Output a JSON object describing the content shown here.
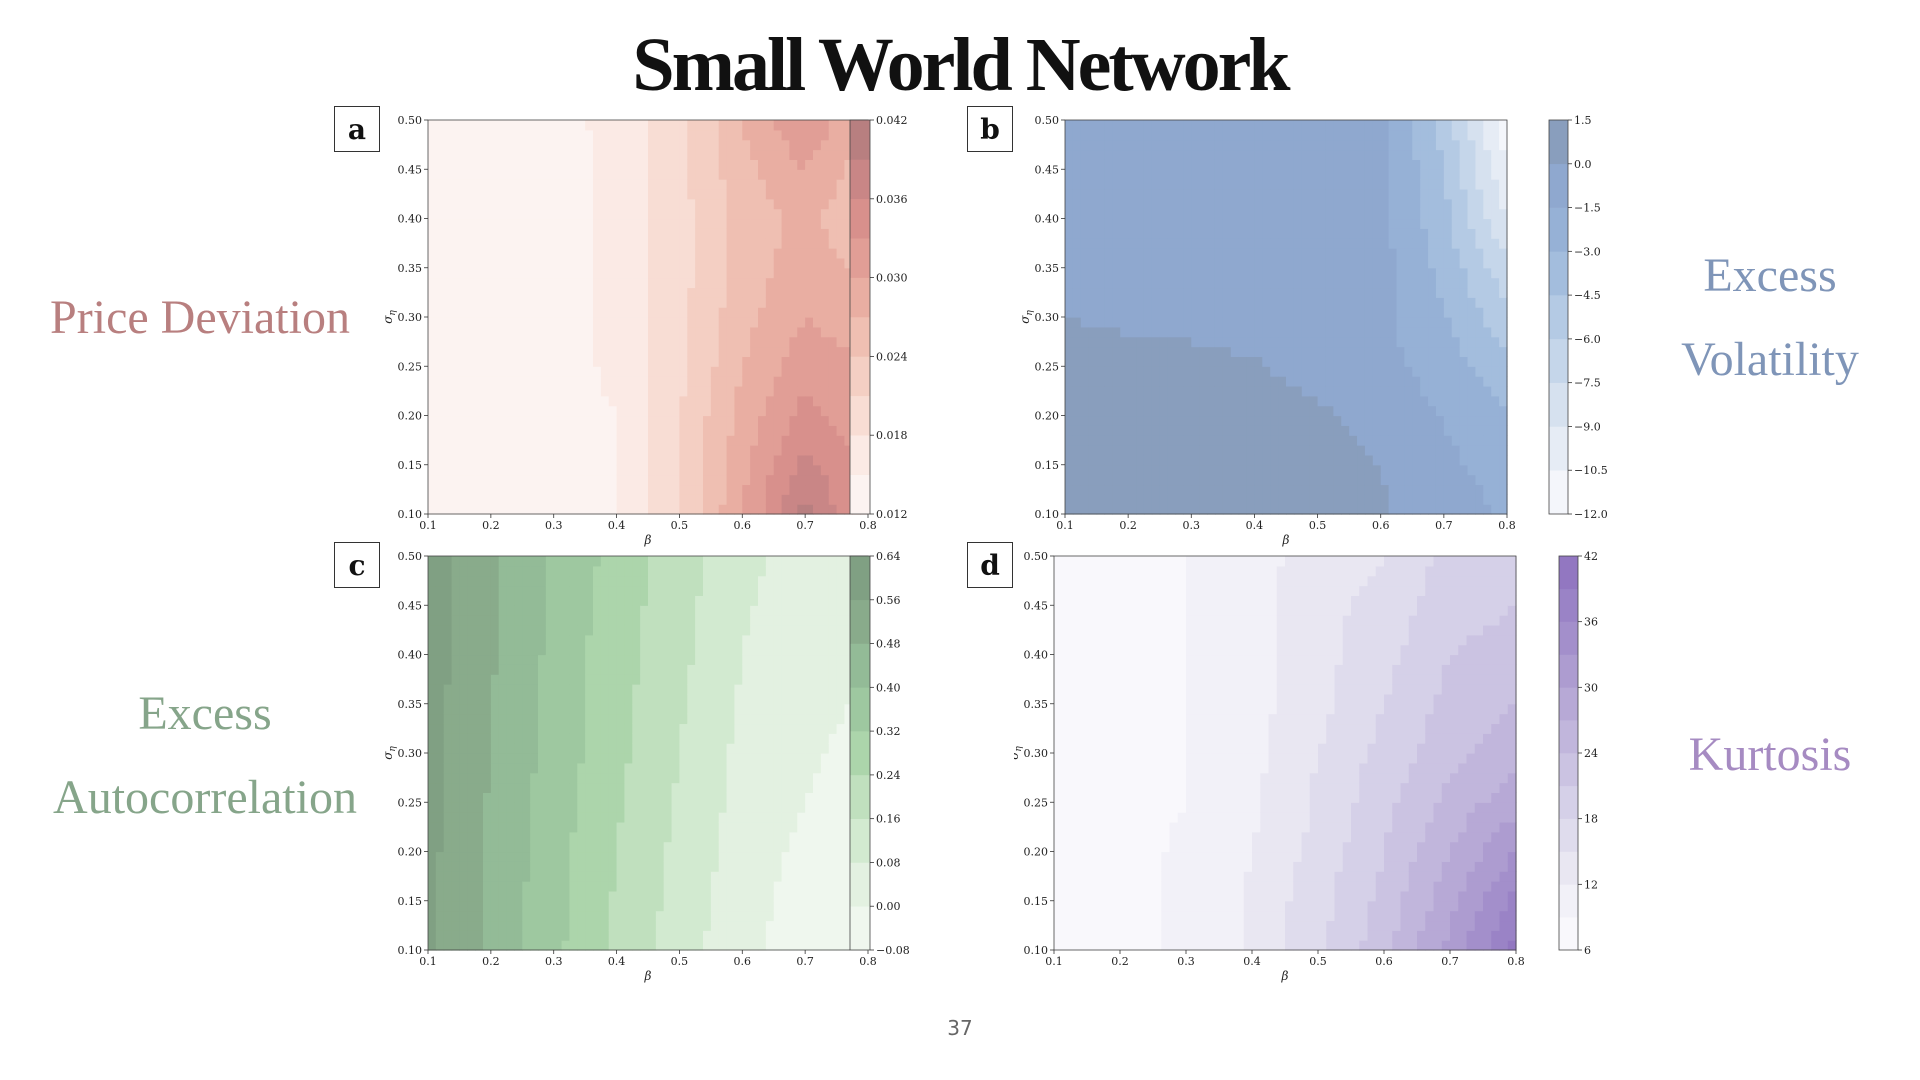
{
  "slide": {
    "title": "Small World Network",
    "page_number": "37",
    "labels": {
      "a": {
        "lines": [
          "Price Deviation"
        ],
        "color": "#b87f7f"
      },
      "b": {
        "lines": [
          "Excess",
          "Volatility"
        ],
        "color": "#7f95b8"
      },
      "c": {
        "lines": [
          "Excess",
          "Autocorrelation"
        ],
        "color": "#86a58a"
      },
      "d": {
        "lines": [
          "Kurtosis"
        ],
        "color": "#a68bc2"
      }
    },
    "panel_letters": {
      "a": "a",
      "b": "b",
      "c": "c",
      "d": "d"
    }
  },
  "chart_data": [
    {
      "id": "a",
      "type": "heatmap",
      "xlabel": "β",
      "ylabel": "σ_η",
      "xlim": [
        0.1,
        0.8
      ],
      "ylim": [
        0.1,
        0.5
      ],
      "x_ticks": [
        "0.1",
        "0.2",
        "0.3",
        "0.4",
        "0.5",
        "0.6",
        "0.7",
        "0.8"
      ],
      "y_ticks": [
        "0.10",
        "0.15",
        "0.20",
        "0.25",
        "0.30",
        "0.35",
        "0.40",
        "0.45",
        "0.50"
      ],
      "x": [
        0.1,
        0.2,
        0.3,
        0.4,
        0.5,
        0.6,
        0.7,
        0.8
      ],
      "y": [
        0.1,
        0.15,
        0.2,
        0.25,
        0.3,
        0.35,
        0.4,
        0.45,
        0.5
      ],
      "z": [
        [
          0.013,
          0.013,
          0.013,
          0.015,
          0.021,
          0.03,
          0.04,
          0.032
        ],
        [
          0.013,
          0.013,
          0.013,
          0.015,
          0.021,
          0.029,
          0.037,
          0.032
        ],
        [
          0.013,
          0.013,
          0.013,
          0.015,
          0.021,
          0.028,
          0.034,
          0.031
        ],
        [
          0.013,
          0.013,
          0.013,
          0.016,
          0.02,
          0.027,
          0.032,
          0.03
        ],
        [
          0.013,
          0.013,
          0.013,
          0.016,
          0.02,
          0.026,
          0.03,
          0.028
        ],
        [
          0.014,
          0.014,
          0.013,
          0.016,
          0.02,
          0.025,
          0.029,
          0.026
        ],
        [
          0.014,
          0.014,
          0.013,
          0.016,
          0.02,
          0.025,
          0.028,
          0.024
        ],
        [
          0.014,
          0.014,
          0.013,
          0.016,
          0.02,
          0.026,
          0.03,
          0.025
        ],
        [
          0.014,
          0.014,
          0.014,
          0.016,
          0.02,
          0.027,
          0.033,
          0.026
        ]
      ],
      "levels": [
        0.012,
        0.015,
        0.018,
        0.021,
        0.024,
        0.027,
        0.03,
        0.033,
        0.036,
        0.039,
        0.042
      ],
      "colors": [
        "#fcf3f1",
        "#fbeae5",
        "#f8ddd4",
        "#f4cfc3",
        "#efbfb2",
        "#e9aea2",
        "#e19e96",
        "#d8908c",
        "#c98686",
        "#b87f80"
      ],
      "colorbar_ticks": [
        "0.042",
        "0.036",
        "0.030",
        "0.024",
        "0.018",
        "0.012"
      ],
      "colorbar_values": [
        0.042,
        0.036,
        0.03,
        0.024,
        0.018,
        0.012
      ]
    },
    {
      "id": "b",
      "type": "heatmap",
      "xlabel": "β",
      "ylabel": "σ_η",
      "xlim": [
        0.1,
        0.8
      ],
      "ylim": [
        0.1,
        0.5
      ],
      "x_ticks": [
        "0.1",
        "0.2",
        "0.3",
        "0.4",
        "0.5",
        "0.6",
        "0.7",
        "0.8"
      ],
      "y_ticks": [
        "0.10",
        "0.15",
        "0.20",
        "0.25",
        "0.30",
        "0.35",
        "0.40",
        "0.45",
        "0.50"
      ],
      "x": [
        0.1,
        0.2,
        0.3,
        0.4,
        0.5,
        0.6,
        0.7,
        0.8
      ],
      "y": [
        0.1,
        0.15,
        0.2,
        0.25,
        0.3,
        0.35,
        0.4,
        0.45,
        0.5
      ],
      "z": [
        [
          0.8,
          0.8,
          0.8,
          0.8,
          0.5,
          0.2,
          -1.0,
          -1.6
        ],
        [
          0.8,
          0.8,
          0.8,
          0.7,
          0.4,
          0.0,
          -1.2,
          -2.0
        ],
        [
          0.7,
          0.7,
          0.6,
          0.5,
          0.2,
          -0.4,
          -1.6,
          -2.8
        ],
        [
          0.5,
          0.4,
          0.3,
          0.1,
          -0.4,
          -0.9,
          -2.2,
          -4.0
        ],
        [
          0.0,
          -0.2,
          -0.3,
          -0.5,
          -0.7,
          -1.2,
          -2.8,
          -5.5
        ],
        [
          -0.6,
          -0.6,
          -0.6,
          -0.6,
          -0.7,
          -1.0,
          -3.5,
          -7.0
        ],
        [
          -0.6,
          -0.6,
          -0.6,
          -0.6,
          -0.7,
          -1.0,
          -4.0,
          -9.0
        ],
        [
          -0.6,
          -0.6,
          -0.6,
          -0.6,
          -0.7,
          -1.0,
          -4.5,
          -10.5
        ],
        [
          -0.6,
          -0.6,
          -0.6,
          -0.6,
          -0.7,
          -1.0,
          -5.0,
          -11.5
        ]
      ],
      "levels": [
        -12.0,
        -10.5,
        -9.0,
        -7.5,
        -6.0,
        -4.5,
        -3.0,
        -1.5,
        0.0,
        1.5
      ],
      "colors": [
        "#f4f6fb",
        "#e6ecf5",
        "#d6e1ef",
        "#c5d6ea",
        "#b4cae4",
        "#a3bddd",
        "#96b1d6",
        "#8fa8cf",
        "#899ebd"
      ],
      "colorbar_ticks": [
        "1.5",
        "0.0",
        "−1.5",
        "−3.0",
        "−4.5",
        "−6.0",
        "−7.5",
        "−9.0",
        "−10.5",
        "−12.0"
      ],
      "colorbar_values": [
        1.5,
        0.0,
        -1.5,
        -3.0,
        -4.5,
        -6.0,
        -7.5,
        -9.0,
        -10.5,
        -12.0
      ]
    },
    {
      "id": "c",
      "type": "heatmap",
      "xlabel": "β",
      "ylabel": "σ_η",
      "xlim": [
        0.1,
        0.8
      ],
      "ylim": [
        0.1,
        0.5
      ],
      "x_ticks": [
        "0.1",
        "0.2",
        "0.3",
        "0.4",
        "0.5",
        "0.6",
        "0.7",
        "0.8"
      ],
      "y_ticks": [
        "0.10",
        "0.15",
        "0.20",
        "0.25",
        "0.30",
        "0.35",
        "0.40",
        "0.45",
        "0.50"
      ],
      "x": [
        0.1,
        0.2,
        0.3,
        0.4,
        0.5,
        0.6,
        0.7,
        0.8
      ],
      "y": [
        0.1,
        0.15,
        0.2,
        0.25,
        0.3,
        0.35,
        0.4,
        0.45,
        0.5
      ],
      "z": [
        [
          0.58,
          0.46,
          0.34,
          0.22,
          0.12,
          0.02,
          -0.04,
          -0.07
        ],
        [
          0.58,
          0.46,
          0.35,
          0.23,
          0.13,
          0.03,
          -0.03,
          -0.06
        ],
        [
          0.58,
          0.47,
          0.35,
          0.24,
          0.14,
          0.04,
          -0.02,
          -0.05
        ],
        [
          0.59,
          0.47,
          0.36,
          0.25,
          0.15,
          0.05,
          0.0,
          -0.04
        ],
        [
          0.59,
          0.48,
          0.37,
          0.26,
          0.16,
          0.06,
          0.01,
          -0.02
        ],
        [
          0.59,
          0.48,
          0.37,
          0.27,
          0.17,
          0.07,
          0.02,
          -0.01
        ],
        [
          0.6,
          0.49,
          0.38,
          0.27,
          0.18,
          0.08,
          0.03,
          0.0
        ],
        [
          0.6,
          0.49,
          0.38,
          0.28,
          0.19,
          0.09,
          0.04,
          0.01
        ],
        [
          0.6,
          0.5,
          0.39,
          0.29,
          0.2,
          0.1,
          0.05,
          0.02
        ]
      ],
      "levels": [
        -0.08,
        0.0,
        0.08,
        0.16,
        0.24,
        0.32,
        0.4,
        0.48,
        0.56,
        0.64
      ],
      "colors": [
        "#eff7ee",
        "#e3f1e1",
        "#d2ead0",
        "#c0e0be",
        "#acd5ab",
        "#9ec8a0",
        "#93bb97",
        "#89ab8b",
        "#80a083"
      ],
      "colorbar_ticks": [
        "0.64",
        "0.56",
        "0.48",
        "0.40",
        "0.32",
        "0.24",
        "0.16",
        "0.08",
        "0.00",
        "−0.08"
      ],
      "colorbar_values": [
        0.64,
        0.56,
        0.48,
        0.4,
        0.32,
        0.24,
        0.16,
        0.08,
        0.0,
        -0.08
      ]
    },
    {
      "id": "d",
      "type": "heatmap",
      "xlabel": "β",
      "ylabel": "σ_η",
      "xlim": [
        0.1,
        0.8
      ],
      "ylim": [
        0.1,
        0.5
      ],
      "x_ticks": [
        "0.1",
        "0.2",
        "0.3",
        "0.4",
        "0.5",
        "0.6",
        "0.7",
        "0.8"
      ],
      "y_ticks": [
        "0.10",
        "0.15",
        "0.20",
        "0.25",
        "0.30",
        "0.35",
        "0.40",
        "0.45",
        "0.50"
      ],
      "x": [
        0.1,
        0.2,
        0.3,
        0.4,
        0.5,
        0.6,
        0.7,
        0.8
      ],
      "y": [
        0.1,
        0.15,
        0.2,
        0.25,
        0.3,
        0.35,
        0.4,
        0.45,
        0.5
      ],
      "z": [
        [
          7,
          8,
          9.5,
          12.5,
          17,
          23,
          31,
          40
        ],
        [
          7,
          8,
          9.5,
          12.5,
          17,
          22,
          29,
          37
        ],
        [
          7,
          8,
          9.5,
          12,
          16,
          21,
          27,
          33
        ],
        [
          7,
          8,
          9,
          11.5,
          15.5,
          20,
          25,
          29
        ],
        [
          7,
          8,
          9,
          11,
          15,
          19,
          23,
          26
        ],
        [
          7,
          8,
          9,
          11,
          14,
          18,
          22,
          24
        ],
        [
          7,
          8,
          9,
          11,
          14,
          17,
          21,
          22
        ],
        [
          7,
          8,
          9,
          11,
          14,
          16,
          20,
          21
        ],
        [
          7,
          8,
          9,
          11,
          13,
          15,
          19,
          20
        ]
      ],
      "levels": [
        6,
        9,
        12,
        15,
        18,
        21,
        24,
        27,
        30,
        33,
        36,
        39,
        42
      ],
      "colors": [
        "#f9f8fc",
        "#f2f1f8",
        "#e9e7f2",
        "#dfdced",
        "#d5d0e8",
        "#cbc3e2",
        "#c1b6dc",
        "#b7a9d6",
        "#ad9cd0",
        "#a38fcb",
        "#9a83c6",
        "#9277c1"
      ],
      "colorbar_ticks": [
        "42",
        "36",
        "30",
        "24",
        "18",
        "12",
        "6"
      ],
      "colorbar_values": [
        42,
        36,
        30,
        24,
        18,
        12,
        6
      ]
    }
  ]
}
